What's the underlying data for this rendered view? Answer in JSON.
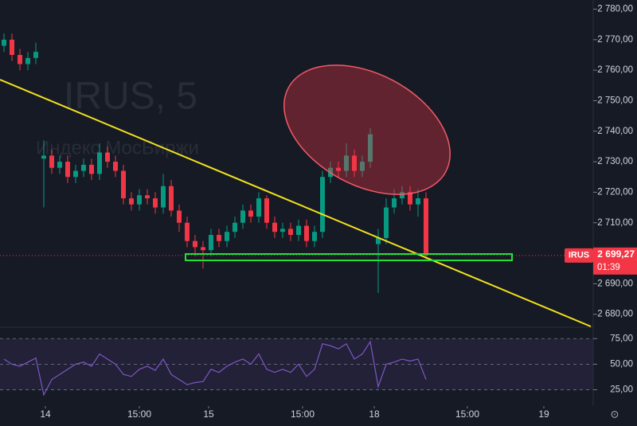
{
  "chart_data": [
    {
      "type": "candlestick",
      "title": "IRUS, 5",
      "subtitle": "Индекс МосБиржи",
      "symbol": "IRUS",
      "last_price": {
        "value": 2699.27,
        "label": "2 699,27"
      },
      "countdown": "01:39",
      "up_color": "#089981",
      "down_color": "#f23645",
      "xlim": [
        0,
        74.5
      ],
      "xticks": [
        {
          "value": 5.7,
          "label": "14"
        },
        {
          "value": 17.5,
          "label": "15:00"
        },
        {
          "value": 26.2,
          "label": "15"
        },
        {
          "value": 38,
          "label": "15:00"
        },
        {
          "value": 47,
          "label": "18"
        },
        {
          "value": 58.7,
          "label": "15:00"
        },
        {
          "value": 68.3,
          "label": "19"
        }
      ],
      "ylim": [
        2676,
        2783
      ],
      "yticks": [
        {
          "value": 2780,
          "label": "2 780,00"
        },
        {
          "value": 2770,
          "label": "2 770,00"
        },
        {
          "value": 2760,
          "label": "2 760,00"
        },
        {
          "value": 2750,
          "label": "2 750,00"
        },
        {
          "value": 2740,
          "label": "2 740,00"
        },
        {
          "value": 2730,
          "label": "2 730,00"
        },
        {
          "value": 2720,
          "label": "2 720,00"
        },
        {
          "value": 2710,
          "label": "2 710,00"
        },
        {
          "value": 2690,
          "label": "2 690,00"
        },
        {
          "value": 2680,
          "label": "2 680,00"
        }
      ],
      "x": [
        0.5,
        1.5,
        2.5,
        3.5,
        4.5,
        5.5,
        6.5,
        7.5,
        8.5,
        9.5,
        10.5,
        11.5,
        12.5,
        13.5,
        14.5,
        15.5,
        16.5,
        17.5,
        18.5,
        19.5,
        20.5,
        21.5,
        22.5,
        23.5,
        24.5,
        25.5,
        26.5,
        27.5,
        28.5,
        29.5,
        30.5,
        31.5,
        32.5,
        33.5,
        34.5,
        35.5,
        36.5,
        37.5,
        38.5,
        39.5,
        40.5,
        41.5,
        42.5,
        43.5,
        44.5,
        45.5,
        46.5,
        47.5,
        48.5,
        49.5,
        50.5,
        51.5,
        52.5,
        53.5
      ],
      "open": [
        2768,
        2770,
        2765,
        2762,
        2764,
        2731,
        2732,
        2728,
        2730,
        2725,
        2727,
        2729,
        2726,
        2733,
        2730,
        2727,
        2718,
        2716,
        2719,
        2718,
        2715,
        2722,
        2714,
        2710,
        2704,
        2702,
        2701,
        2706,
        2704,
        2707,
        2710,
        2714,
        2712,
        2718,
        2710,
        2707,
        2708,
        2706,
        2709,
        2704,
        2707,
        2725,
        2728,
        2727,
        2732,
        2727,
        2730,
        2703,
        2705,
        2715,
        2718,
        2720,
        2716,
        2718
      ],
      "high": [
        2772,
        2772,
        2767,
        2766,
        2769,
        2737,
        2734,
        2732,
        2732,
        2729,
        2731,
        2731,
        2736,
        2735,
        2732,
        2729,
        2720,
        2721,
        2721,
        2720,
        2726,
        2724,
        2716,
        2712,
        2706,
        2704,
        2708,
        2708,
        2709,
        2712,
        2716,
        2716,
        2720,
        2719,
        2712,
        2710,
        2710,
        2711,
        2711,
        2709,
        2727,
        2730,
        2730,
        2736,
        2734,
        2732,
        2741,
        2708,
        2718,
        2721,
        2722,
        2722,
        2721,
        2720
      ],
      "low": [
        2766,
        2763,
        2760,
        2760,
        2762,
        2715,
        2726,
        2726,
        2723,
        2723,
        2725,
        2724,
        2724,
        2728,
        2725,
        2716,
        2714,
        2714,
        2716,
        2713,
        2713,
        2712,
        2707,
        2702,
        2699,
        2695,
        2699,
        2702,
        2702,
        2705,
        2708,
        2710,
        2710,
        2708,
        2705,
        2705,
        2704,
        2704,
        2702,
        2702,
        2705,
        2723,
        2725,
        2725,
        2725,
        2725,
        2728,
        2687,
        2703,
        2713,
        2716,
        2714,
        2712,
        2698
      ],
      "close": [
        2770,
        2765,
        2762,
        2764,
        2766,
        2732,
        2728,
        2730,
        2725,
        2727,
        2729,
        2726,
        2733,
        2730,
        2727,
        2718,
        2716,
        2719,
        2718,
        2715,
        2722,
        2714,
        2710,
        2704,
        2702,
        2701,
        2706,
        2704,
        2707,
        2710,
        2714,
        2712,
        2718,
        2710,
        2707,
        2708,
        2706,
        2709,
        2704,
        2707,
        2725,
        2728,
        2727,
        2732,
        2727,
        2730,
        2739,
        2705,
        2715,
        2718,
        2720,
        2716,
        2718,
        2699.27
      ]
    },
    {
      "type": "line",
      "color": "#7e57c2",
      "band_color": "rgba(126,87,194,0.12)",
      "ylim": [
        9,
        83
      ],
      "yticks": [
        {
          "value": 75,
          "label": "75,00"
        },
        {
          "value": 50,
          "label": "50,00"
        },
        {
          "value": 25,
          "label": "25,00"
        }
      ],
      "x": [
        0.5,
        1.5,
        2.5,
        3.5,
        4.5,
        5.5,
        6.5,
        7.5,
        8.5,
        9.5,
        10.5,
        11.5,
        12.5,
        13.5,
        14.5,
        15.5,
        16.5,
        17.5,
        18.5,
        19.5,
        20.5,
        21.5,
        22.5,
        23.5,
        24.5,
        25.5,
        26.5,
        27.5,
        28.5,
        29.5,
        30.5,
        31.5,
        32.5,
        33.5,
        34.5,
        35.5,
        36.5,
        37.5,
        38.5,
        39.5,
        40.5,
        41.5,
        42.5,
        43.5,
        44.5,
        45.5,
        46.5,
        47.5,
        48.5,
        49.5,
        50.5,
        51.5,
        52.5,
        53.5
      ],
      "values": [
        55,
        50,
        48,
        52,
        56,
        20,
        35,
        40,
        45,
        50,
        52,
        48,
        60,
        55,
        50,
        40,
        38,
        45,
        48,
        44,
        55,
        40,
        35,
        30,
        32,
        33,
        45,
        42,
        48,
        52,
        55,
        50,
        60,
        45,
        42,
        45,
        42,
        50,
        38,
        45,
        70,
        68,
        65,
        70,
        55,
        60,
        72,
        28,
        50,
        52,
        55,
        53,
        55,
        35
      ]
    }
  ]
}
